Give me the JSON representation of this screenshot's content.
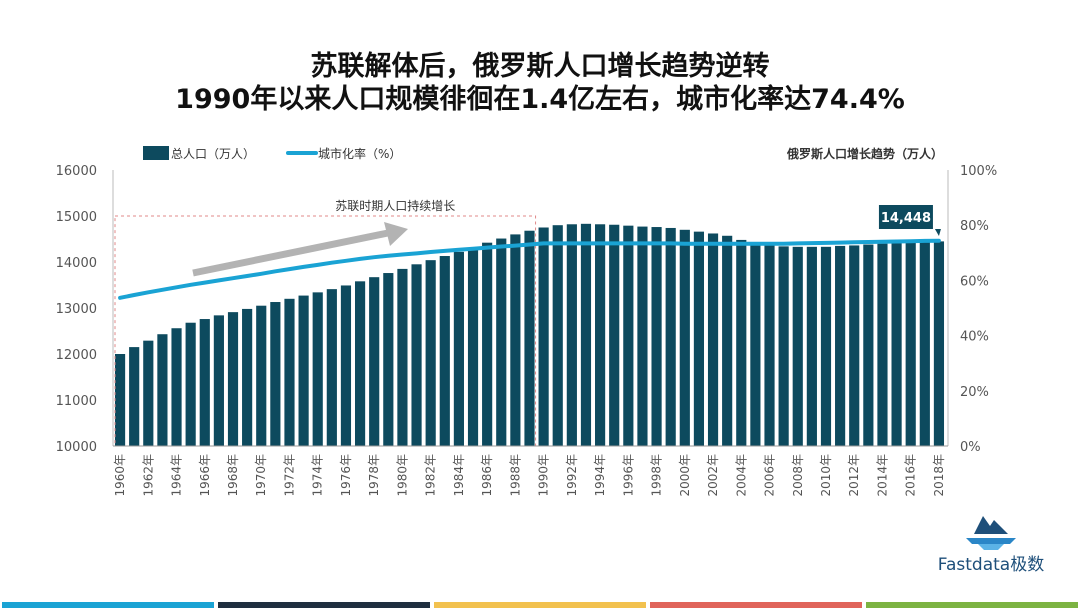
{
  "title_line1": "苏联解体后，俄罗斯人口增长趋势逆转",
  "title_line2": "1990年以来人口规模徘徊在1.4亿左右，城市化率达74.4%",
  "brand": "Fastdata极数",
  "colors": {
    "bar": "#0d4a5e",
    "line": "#1aa3d4",
    "arrow": "#b3b3b3",
    "dash_box": "#e08a8a",
    "callout_bg": "#0d4a5e",
    "bottom_bars": [
      "#1aa3d4",
      "#1f2f3f",
      "#f2c14e",
      "#e0645a",
      "#7cb342"
    ]
  },
  "chart_data": {
    "type": "bar+line",
    "legend": {
      "placement": "top-left",
      "bar_label": "总人口（万人）",
      "line_label": "城市化率（%）"
    },
    "right_header": "俄罗斯人口增长趋势（万人）",
    "annotation": "苏联时期人口持续增长",
    "callout": "14,448",
    "y_left": {
      "min": 10000,
      "max": 16000,
      "ticks": [
        "10000",
        "11000",
        "12000",
        "13000",
        "14000",
        "15000",
        "16000"
      ]
    },
    "y_right": {
      "min": 0,
      "max": 100,
      "ticks": [
        "0%",
        "20%",
        "40%",
        "60%",
        "80%",
        "100%"
      ]
    },
    "x_labels": [
      "1960年",
      "1962年",
      "1964年",
      "1966年",
      "1968年",
      "1970年",
      "1972年",
      "1974年",
      "1976年",
      "1978年",
      "1980年",
      "1982年",
      "1984年",
      "1986年",
      "1988年",
      "1990年",
      "1992年",
      "1994年",
      "1996年",
      "1998年",
      "2000年",
      "2002年",
      "2004年",
      "2006年",
      "2008年",
      "2010年",
      "2012年",
      "2014年",
      "2016年",
      "2018年"
    ],
    "years": [
      1960,
      1961,
      1962,
      1963,
      1964,
      1965,
      1966,
      1967,
      1968,
      1969,
      1970,
      1971,
      1972,
      1973,
      1974,
      1975,
      1976,
      1977,
      1978,
      1979,
      1980,
      1981,
      1982,
      1983,
      1984,
      1985,
      1986,
      1987,
      1988,
      1989,
      1990,
      1991,
      1992,
      1993,
      1994,
      1995,
      1996,
      1997,
      1998,
      1999,
      2000,
      2001,
      2002,
      2003,
      2004,
      2005,
      2006,
      2007,
      2008,
      2009,
      2010,
      2011,
      2012,
      2013,
      2014,
      2015,
      2016,
      2017,
      2018
    ],
    "series": [
      {
        "name": "总人口（万人）",
        "kind": "bar",
        "values": [
          12000,
          12150,
          12290,
          12430,
          12560,
          12680,
          12760,
          12840,
          12910,
          12980,
          13050,
          13130,
          13200,
          13270,
          13340,
          13410,
          13490,
          13580,
          13670,
          13760,
          13850,
          13950,
          14040,
          14130,
          14220,
          14310,
          14420,
          14510,
          14600,
          14680,
          14750,
          14800,
          14820,
          14830,
          14820,
          14810,
          14790,
          14770,
          14760,
          14740,
          14700,
          14660,
          14620,
          14570,
          14480,
          14430,
          14380,
          14340,
          14330,
          14330,
          14330,
          14350,
          14360,
          14380,
          14400,
          14410,
          14420,
          14430,
          14448
        ]
      },
      {
        "name": "城市化率（%）",
        "kind": "line",
        "values": [
          53.7,
          54.7,
          55.7,
          56.6,
          57.5,
          58.4,
          59.2,
          60.0,
          60.8,
          61.6,
          62.4,
          63.3,
          64.1,
          64.9,
          65.6,
          66.4,
          67.1,
          67.8,
          68.4,
          68.9,
          69.4,
          69.8,
          70.3,
          70.7,
          71.1,
          71.5,
          71.9,
          72.3,
          72.6,
          73.0,
          73.4,
          73.4,
          73.4,
          73.4,
          73.4,
          73.4,
          73.4,
          73.4,
          73.4,
          73.4,
          73.3,
          73.3,
          73.3,
          73.3,
          73.3,
          73.3,
          73.3,
          73.3,
          73.4,
          73.5,
          73.6,
          73.7,
          73.8,
          73.9,
          74.0,
          74.1,
          74.2,
          74.3,
          74.4
        ]
      }
    ]
  }
}
